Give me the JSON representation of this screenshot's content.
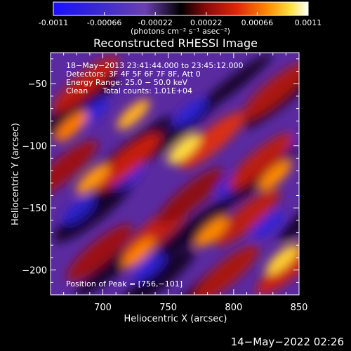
{
  "colorbar": {
    "min_label": "-0.0011",
    "tick_labels": [
      "-0.0011",
      "-0.00066",
      "-0.00022",
      "0.00022",
      "0.00066",
      "0.0011"
    ],
    "tick_values": [
      -0.0011,
      -0.00066,
      -0.00022,
      0.00022,
      0.00066,
      0.0011
    ],
    "range": [
      -0.0011,
      0.0011
    ],
    "units_label": "(photons cm⁻² s⁻¹ asec⁻²)",
    "colors": [
      "#1a10ff",
      "#3a2ad0",
      "#6b3fb0",
      "#000000",
      "#8a0a0a",
      "#e0260a",
      "#ff8a00",
      "#ffe040",
      "#ffffff"
    ]
  },
  "chart_data": {
    "type": "heatmap",
    "title": "Reconstructed RHESSI Image",
    "xlabel": "Heliocentric X (arcsec)",
    "ylabel": "Heliocentric Y (arcsec)",
    "xlim": [
      660,
      850
    ],
    "ylim": [
      -220,
      -25
    ],
    "x_ticks": [
      700,
      750,
      800,
      850
    ],
    "x_tick_labels": [
      "700",
      "750",
      "800",
      "850"
    ],
    "y_ticks": [
      -50,
      -100,
      -150,
      -200
    ],
    "y_tick_labels": [
      "−50",
      "−100",
      "−150",
      "−200"
    ],
    "annotations": [
      "18−May−2013 23:41:44.000 to 23:45:12.000",
      "Detectors: 3F 4F 5F 6F 7F 8F, Att 0",
      "Energy Range: 25.0 − 50.0 keV",
      "Clean      Total counts: 1.01E+04"
    ],
    "peak_label": "Position of Peak = [756,−101]",
    "peak": {
      "x": 756,
      "y": -101
    }
  },
  "footer": {
    "timestamp": "14−May−2022 02:26"
  }
}
